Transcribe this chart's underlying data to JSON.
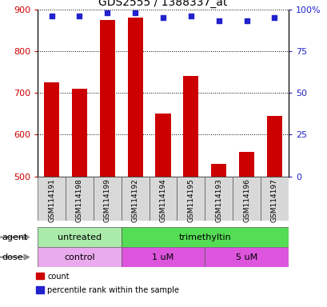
{
  "title": "GDS2555 / 1388337_at",
  "samples": [
    "GSM114191",
    "GSM114198",
    "GSM114199",
    "GSM114192",
    "GSM114194",
    "GSM114195",
    "GSM114193",
    "GSM114196",
    "GSM114197"
  ],
  "counts": [
    725,
    710,
    875,
    880,
    650,
    740,
    530,
    558,
    645
  ],
  "percentiles": [
    96,
    96,
    98,
    98,
    95,
    96,
    93,
    93,
    95
  ],
  "y_min": 500,
  "y_max": 900,
  "y_ticks": [
    500,
    600,
    700,
    800,
    900
  ],
  "y2_ticks": [
    0,
    25,
    50,
    75,
    100
  ],
  "bar_color": "#cc0000",
  "marker_color": "#2222cc",
  "bar_width": 0.55,
  "agent_labels": [
    {
      "text": "untreated",
      "start": 0,
      "end": 3,
      "color": "#aaeaaa"
    },
    {
      "text": "trimethyltin",
      "start": 3,
      "end": 9,
      "color": "#55dd55"
    }
  ],
  "dose_labels": [
    {
      "text": "control",
      "start": 0,
      "end": 3,
      "color": "#eaaaee"
    },
    {
      "text": "1 uM",
      "start": 3,
      "end": 6,
      "color": "#dd55dd"
    },
    {
      "text": "5 uM",
      "start": 6,
      "end": 9,
      "color": "#dd55dd"
    }
  ],
  "xlabel_fontsize": 7,
  "title_fontsize": 10,
  "tick_label_color_left": "#cc0000",
  "tick_label_color_right": "#2222cc",
  "legend_items": [
    {
      "label": "count",
      "color": "#cc0000"
    },
    {
      "label": "percentile rank within the sample",
      "color": "#2222cc"
    }
  ],
  "agent_row_label": "agent",
  "dose_row_label": "dose"
}
